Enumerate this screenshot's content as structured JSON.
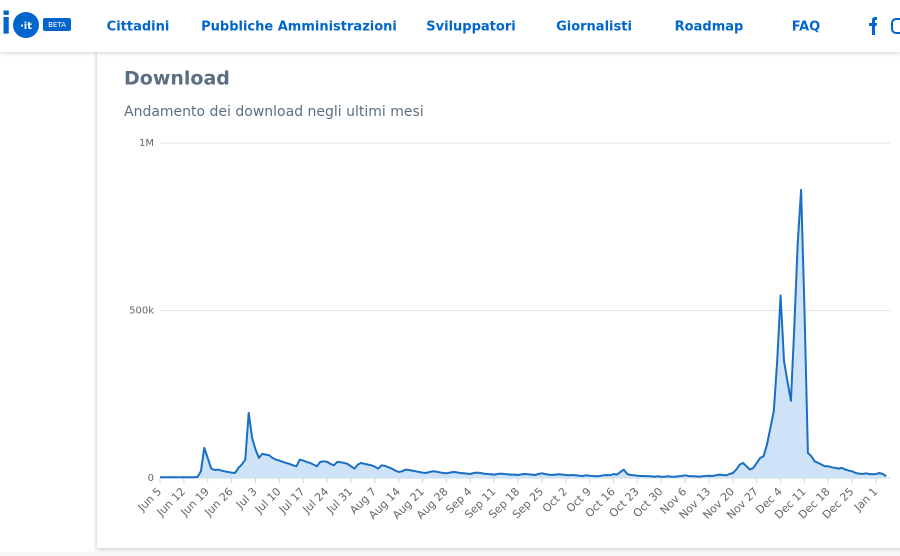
{
  "header": {
    "logo": "i",
    "logo_suffix": "·it",
    "badge": "BETA",
    "nav": [
      "Cittadini",
      "Pubbliche Amministrazioni",
      "Sviluppatori",
      "Giornalisti",
      "Roadmap",
      "FAQ"
    ]
  },
  "chart_data": {
    "type": "line",
    "title": "Download",
    "subtitle": "Andamento dei download negli ultimi mesi",
    "color": "#1a6fc4",
    "fill": "#cfe3f8",
    "grid": true,
    "ylim": [
      0,
      1000000
    ],
    "yticks": [
      0,
      {
        "value": 500000,
        "label": "500k"
      },
      {
        "value": 1000000,
        "label": "1M"
      }
    ],
    "categories": [
      "Jun 5",
      null,
      null,
      null,
      null,
      null,
      null,
      "Jun 12",
      null,
      null,
      null,
      null,
      null,
      null,
      "Jun 19",
      null,
      null,
      null,
      null,
      null,
      null,
      "Jun 26",
      null,
      null,
      null,
      null,
      null,
      null,
      "Jul 3",
      null,
      null,
      null,
      null,
      null,
      null,
      "Jul 10",
      null,
      null,
      null,
      null,
      null,
      null,
      "Jul 17",
      null,
      null,
      null,
      null,
      null,
      null,
      "Jul 24",
      null,
      null,
      null,
      null,
      null,
      null,
      "Jul 31",
      null,
      null,
      null,
      null,
      null,
      null,
      "Aug 7",
      null,
      null,
      null,
      null,
      null,
      null,
      "Aug 14",
      null,
      null,
      null,
      null,
      null,
      null,
      "Aug 21",
      null,
      null,
      null,
      null,
      null,
      null,
      "Aug 28",
      null,
      null,
      null,
      null,
      null,
      null,
      "Sep 4",
      null,
      null,
      null,
      null,
      null,
      null,
      "Sep 11",
      null,
      null,
      null,
      null,
      null,
      null,
      "Sep 18",
      null,
      null,
      null,
      null,
      null,
      null,
      "Sep 25",
      null,
      null,
      null,
      null,
      null,
      null,
      "Oct 2",
      null,
      null,
      null,
      null,
      null,
      null,
      "Oct 9",
      null,
      null,
      null,
      null,
      null,
      null,
      "Oct 16",
      null,
      null,
      null,
      null,
      null,
      null,
      "Oct 23",
      null,
      null,
      null,
      null,
      null,
      null,
      "Oct 30",
      null,
      null,
      null,
      null,
      null,
      null,
      "Nov 6",
      null,
      null,
      null,
      null,
      null,
      null,
      "Nov 13",
      null,
      null,
      null,
      null,
      null,
      null,
      "Nov 20",
      null,
      null,
      null,
      null,
      null,
      null,
      "Nov 27",
      null,
      null,
      null,
      null,
      null,
      null,
      "Dec 4",
      null,
      null,
      null,
      null,
      null,
      null,
      "Dec 11",
      null,
      null,
      null,
      null,
      null,
      null,
      "Dec 18",
      null,
      null,
      null,
      null,
      null,
      null,
      "Dec 25",
      null,
      null,
      null,
      null,
      null,
      null,
      "Jan 1",
      null,
      null,
      null
    ],
    "values": [
      2000,
      2000,
      2000,
      2000,
      2000,
      2000,
      2000,
      2000,
      2000,
      2000,
      2000,
      3000,
      20000,
      90000,
      60000,
      28000,
      24000,
      25000,
      22000,
      20000,
      18000,
      16000,
      15000,
      30000,
      40000,
      55000,
      195000,
      120000,
      85000,
      60000,
      72000,
      70000,
      68000,
      60000,
      55000,
      52000,
      48000,
      45000,
      42000,
      38000,
      35000,
      55000,
      52000,
      48000,
      45000,
      40000,
      35000,
      48000,
      50000,
      48000,
      42000,
      38000,
      48000,
      47000,
      45000,
      42000,
      35000,
      28000,
      40000,
      45000,
      42000,
      40000,
      38000,
      34000,
      28000,
      38000,
      36000,
      32000,
      28000,
      22000,
      18000,
      20000,
      25000,
      24000,
      22000,
      20000,
      18000,
      16000,
      15000,
      18000,
      20000,
      19000,
      17000,
      15000,
      14000,
      16000,
      18000,
      17000,
      15000,
      14000,
      13000,
      12000,
      15000,
      16000,
      15000,
      13000,
      12000,
      11000,
      10000,
      12000,
      13000,
      12000,
      11000,
      10000,
      10000,
      9000,
      11000,
      12000,
      11000,
      10000,
      9000,
      12000,
      14000,
      12000,
      10000,
      9000,
      10000,
      11000,
      10000,
      9000,
      8000,
      9000,
      8000,
      7000,
      6000,
      8000,
      7000,
      6000,
      5000,
      6000,
      8000,
      9000,
      8000,
      12000,
      10000,
      18000,
      25000,
      12000,
      9000,
      8000,
      7000,
      6000,
      6000,
      5000,
      5000,
      4000,
      5000,
      4000,
      4000,
      5000,
      4000,
      4000,
      5000,
      6000,
      8000,
      6000,
      5000,
      5000,
      4000,
      5000,
      6000,
      7000,
      6000,
      8000,
      10000,
      9000,
      8000,
      12000,
      15000,
      25000,
      40000,
      45000,
      35000,
      25000,
      30000,
      45000,
      60000,
      65000,
      100000,
      150000,
      200000,
      350000,
      545000,
      350000,
      290000,
      230000,
      450000,
      700000,
      860000,
      500000,
      75000,
      65000,
      50000,
      45000,
      40000,
      35000,
      35000,
      32000,
      30000,
      28000,
      30000,
      25000,
      22000,
      20000,
      15000,
      13000,
      12000,
      14000,
      12000,
      11000,
      12000,
      15000,
      12000,
      5000
    ]
  }
}
